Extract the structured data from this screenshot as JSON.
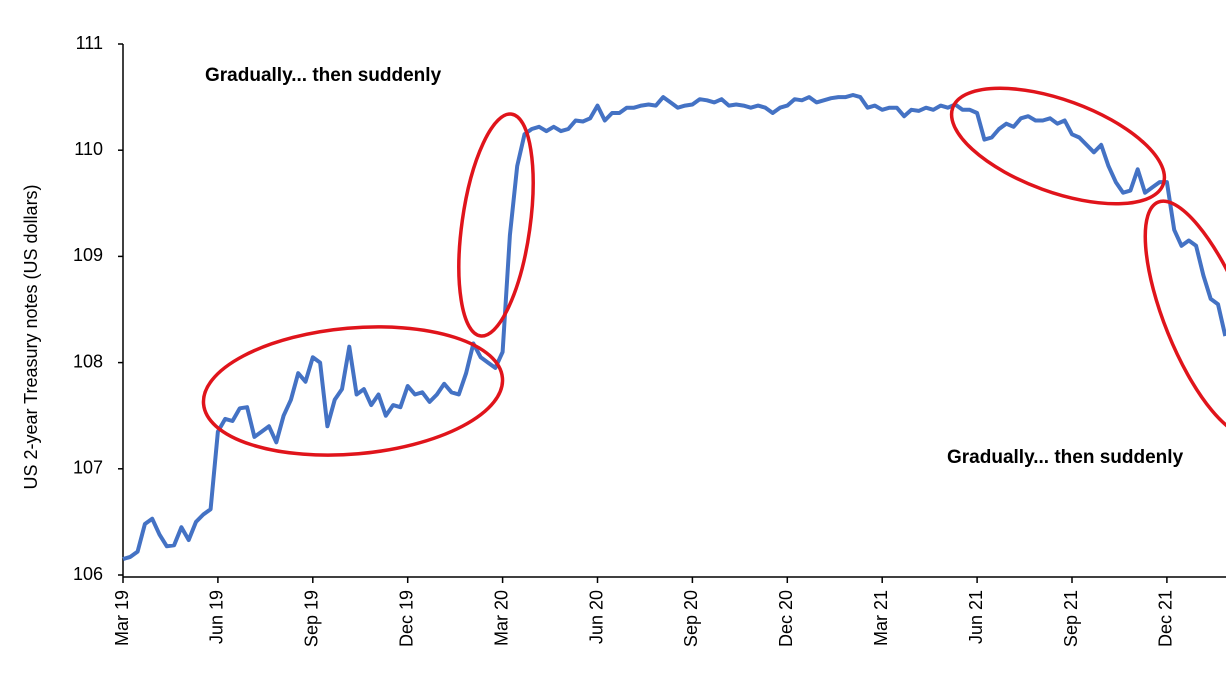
{
  "chart_data": {
    "type": "line",
    "y_label": "US 2-year Treasury notes (US dollars)",
    "annotations": [
      "Gradually... then suddenly",
      "Gradually... then suddenly"
    ],
    "color": "#4472c4",
    "ylim": [
      106,
      111
    ],
    "yticks": [
      106,
      107,
      108,
      109,
      110,
      111
    ],
    "grid": false,
    "categories": [
      "Mar 19",
      null,
      null,
      null,
      null,
      null,
      null,
      null,
      null,
      null,
      null,
      null,
      null,
      "Jun 19",
      null,
      null,
      null,
      null,
      null,
      null,
      null,
      null,
      null,
      null,
      null,
      null,
      "Sep 19",
      null,
      null,
      null,
      null,
      null,
      null,
      null,
      null,
      null,
      null,
      null,
      null,
      "Dec 19",
      null,
      null,
      null,
      null,
      null,
      null,
      null,
      null,
      null,
      null,
      null,
      null,
      "Mar 20",
      null,
      null,
      null,
      null,
      null,
      null,
      null,
      null,
      null,
      null,
      null,
      null,
      "Jun 20",
      null,
      null,
      null,
      null,
      null,
      null,
      null,
      null,
      null,
      null,
      null,
      null,
      "Sep 20",
      null,
      null,
      null,
      null,
      null,
      null,
      null,
      null,
      null,
      null,
      null,
      null,
      "Dec 20",
      null,
      null,
      null,
      null,
      null,
      null,
      null,
      null,
      null,
      null,
      null,
      null,
      "Mar 21",
      null,
      null,
      null,
      null,
      null,
      null,
      null,
      null,
      null,
      null,
      null,
      null,
      "Jun 21",
      null,
      null,
      null,
      null,
      null,
      null,
      null,
      null,
      null,
      null,
      null,
      null,
      "Sep 21",
      null,
      null,
      null,
      null,
      null,
      null,
      null,
      null,
      null,
      null,
      null,
      null,
      "Dec 21",
      null,
      null,
      null,
      null,
      null,
      null,
      null,
      null
    ],
    "values": [
      106.15,
      106.17,
      106.22,
      106.48,
      106.53,
      106.38,
      106.27,
      106.28,
      106.45,
      106.33,
      106.5,
      106.57,
      106.62,
      107.35,
      107.47,
      107.45,
      107.57,
      107.58,
      107.3,
      107.35,
      107.4,
      107.25,
      107.5,
      107.65,
      107.9,
      107.82,
      108.05,
      108.0,
      107.4,
      107.65,
      107.75,
      108.15,
      107.7,
      107.75,
      107.6,
      107.7,
      107.5,
      107.6,
      107.58,
      107.78,
      107.7,
      107.72,
      107.63,
      107.7,
      107.8,
      107.72,
      107.7,
      107.9,
      108.18,
      108.05,
      108.0,
      107.95,
      108.1,
      109.2,
      109.85,
      110.15,
      110.2,
      110.22,
      110.18,
      110.22,
      110.18,
      110.2,
      110.28,
      110.27,
      110.3,
      110.42,
      110.28,
      110.35,
      110.35,
      110.4,
      110.4,
      110.42,
      110.43,
      110.42,
      110.5,
      110.45,
      110.4,
      110.42,
      110.43,
      110.48,
      110.47,
      110.45,
      110.48,
      110.42,
      110.43,
      110.42,
      110.4,
      110.42,
      110.4,
      110.35,
      110.4,
      110.42,
      110.48,
      110.47,
      110.5,
      110.45,
      110.47,
      110.49,
      110.5,
      110.5,
      110.52,
      110.5,
      110.4,
      110.42,
      110.38,
      110.4,
      110.4,
      110.32,
      110.38,
      110.37,
      110.4,
      110.38,
      110.42,
      110.4,
      110.43,
      110.38,
      110.38,
      110.35,
      110.1,
      110.12,
      110.2,
      110.25,
      110.22,
      110.3,
      110.32,
      110.28,
      110.28,
      110.3,
      110.25,
      110.28,
      110.15,
      110.12,
      110.05,
      109.98,
      110.05,
      109.85,
      109.7,
      109.6,
      109.62,
      109.82,
      109.6,
      109.65,
      109.7,
      109.7,
      109.25,
      109.1,
      109.15,
      109.1,
      108.82,
      108.6,
      108.55,
      108.25
    ]
  }
}
